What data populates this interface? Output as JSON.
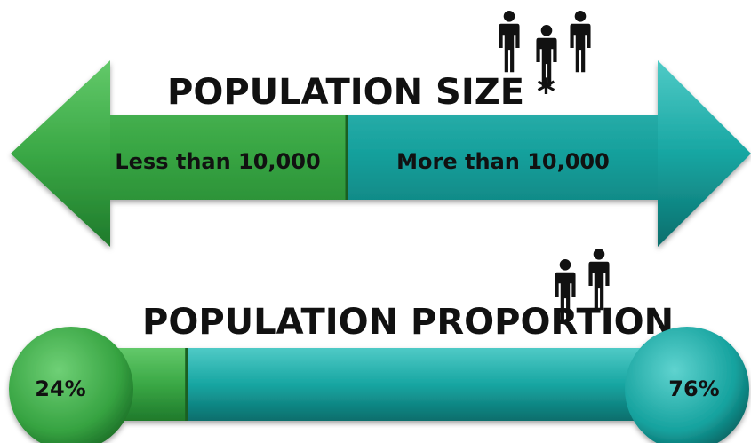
{
  "size_section": {
    "title": "POPULATION SIZE *",
    "left_label": "Less than 10,000",
    "right_label": "More than 10,000",
    "icon": "three-people-icon"
  },
  "proportion_section": {
    "title": "POPULATION PROPORTION",
    "icon": "two-people-icon"
  },
  "chart_data": {
    "type": "bar",
    "title": "POPULATION PROPORTION",
    "categories": [
      "Less than 10,000",
      "More than 10,000"
    ],
    "values": [
      24,
      76
    ],
    "value_labels": [
      "24%",
      "76%"
    ],
    "unit": "%"
  },
  "colors": {
    "green": "#3aa845",
    "teal": "#16a3a0",
    "text": "#111111"
  }
}
